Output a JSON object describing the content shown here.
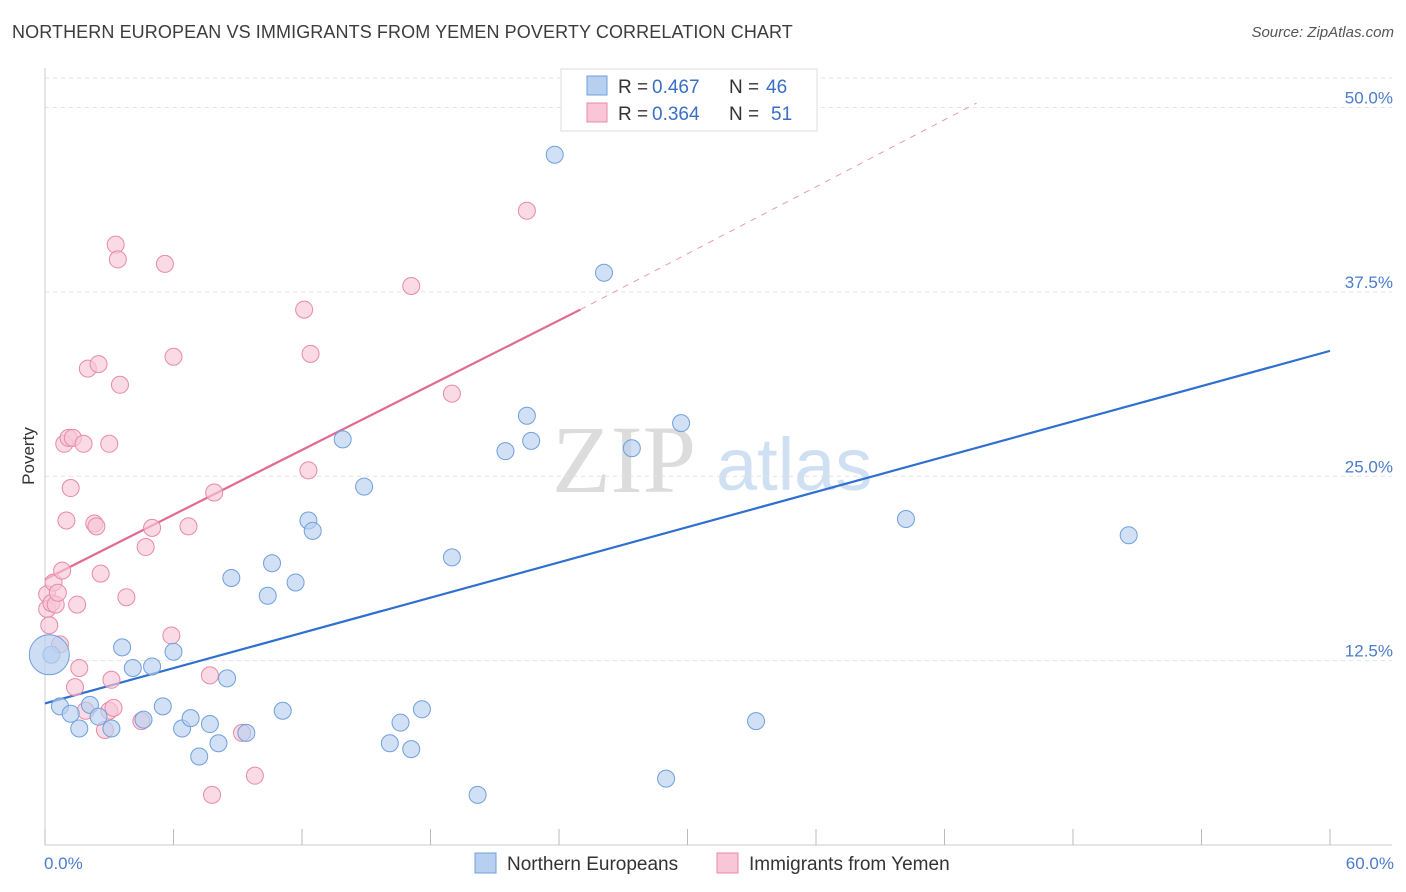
{
  "title": "NORTHERN EUROPEAN VS IMMIGRANTS FROM YEMEN POVERTY CORRELATION CHART",
  "source": "Source: ZipAtlas.com",
  "watermark": {
    "zip": "ZIP",
    "atlas": "atlas"
  },
  "chart_data": {
    "type": "scatter",
    "ylabel": "Poverty",
    "xlim": [
      0,
      60
    ],
    "ylim": [
      0,
      52
    ],
    "x_tick_labels": [
      "0.0%",
      "60.0%"
    ],
    "y_ticks": [
      {
        "value": 12.5,
        "label": "12.5%"
      },
      {
        "value": 25.0,
        "label": "25.0%"
      },
      {
        "value": 37.5,
        "label": "37.5%"
      },
      {
        "value": 50.0,
        "label": "50.0%"
      }
    ],
    "series": [
      {
        "name": "Northern Europeans",
        "color": "#6fa0dc",
        "fill": "#b8d0f0",
        "line_color": "#2f6fcf",
        "R": "0.467",
        "N": "46",
        "trend": {
          "x0": 0,
          "y0": 9.6,
          "x1": 60,
          "y1": 33.5
        },
        "points": [
          [
            0.3,
            12.9
          ],
          [
            0.7,
            9.4
          ],
          [
            1.2,
            8.9
          ],
          [
            1.6,
            7.9
          ],
          [
            2.1,
            9.5
          ],
          [
            2.5,
            8.7
          ],
          [
            3.1,
            7.9
          ],
          [
            3.6,
            13.4
          ],
          [
            4.1,
            12.0
          ],
          [
            4.6,
            8.5
          ],
          [
            5.0,
            12.1
          ],
          [
            5.5,
            9.4
          ],
          [
            6.0,
            13.1
          ],
          [
            6.4,
            7.9
          ],
          [
            6.8,
            8.6
          ],
          [
            7.2,
            6.0
          ],
          [
            7.7,
            8.2
          ],
          [
            8.1,
            6.9
          ],
          [
            8.5,
            11.3
          ],
          [
            8.7,
            18.1
          ],
          [
            9.4,
            7.6
          ],
          [
            10.4,
            16.9
          ],
          [
            10.6,
            19.1
          ],
          [
            11.1,
            9.1
          ],
          [
            11.7,
            17.8
          ],
          [
            12.3,
            22.0
          ],
          [
            12.5,
            21.3
          ],
          [
            13.9,
            27.5
          ],
          [
            14.9,
            24.3
          ],
          [
            16.1,
            6.9
          ],
          [
            16.6,
            8.3
          ],
          [
            17.1,
            6.5
          ],
          [
            17.6,
            9.2
          ],
          [
            19.0,
            19.5
          ],
          [
            20.2,
            3.4
          ],
          [
            21.5,
            26.7
          ],
          [
            22.5,
            29.1
          ],
          [
            22.7,
            27.4
          ],
          [
            23.8,
            46.8
          ],
          [
            26.1,
            38.8
          ],
          [
            27.4,
            26.9
          ],
          [
            29.0,
            4.5
          ],
          [
            29.7,
            28.6
          ],
          [
            33.2,
            8.4
          ],
          [
            40.2,
            22.1
          ],
          [
            50.6,
            21.0
          ]
        ],
        "big_point": [
          0.2,
          12.9
        ]
      },
      {
        "name": "Immigrants from Yemen",
        "color": "#e98aa8",
        "fill": "#f8c6d6",
        "line_color": "#e06a93",
        "R": "0.364",
        "N": "51",
        "trend": {
          "x0": 0,
          "y0": 18.0,
          "x1": 25,
          "y1": 36.3
        },
        "trend_ext": {
          "x0": 25,
          "y0": 36.3,
          "x1": 43.5,
          "y1": 50.3
        },
        "points": [
          [
            0.1,
            17.0
          ],
          [
            0.1,
            16.0
          ],
          [
            0.2,
            14.9
          ],
          [
            0.3,
            16.4
          ],
          [
            0.4,
            17.8
          ],
          [
            0.5,
            16.3
          ],
          [
            0.6,
            17.1
          ],
          [
            0.7,
            13.6
          ],
          [
            0.8,
            18.6
          ],
          [
            0.9,
            27.2
          ],
          [
            1.0,
            22.0
          ],
          [
            1.1,
            27.6
          ],
          [
            1.2,
            24.2
          ],
          [
            1.3,
            27.6
          ],
          [
            1.4,
            10.7
          ],
          [
            1.5,
            16.3
          ],
          [
            1.6,
            12.0
          ],
          [
            1.8,
            27.2
          ],
          [
            1.9,
            9.1
          ],
          [
            2.0,
            32.3
          ],
          [
            2.3,
            21.8
          ],
          [
            2.4,
            21.6
          ],
          [
            2.5,
            32.6
          ],
          [
            2.6,
            18.4
          ],
          [
            2.8,
            7.8
          ],
          [
            3.0,
            9.1
          ],
          [
            3.0,
            27.2
          ],
          [
            3.1,
            11.2
          ],
          [
            3.2,
            9.3
          ],
          [
            3.3,
            40.7
          ],
          [
            3.4,
            39.7
          ],
          [
            3.5,
            31.2
          ],
          [
            3.8,
            16.8
          ],
          [
            4.5,
            8.4
          ],
          [
            4.7,
            20.2
          ],
          [
            5.0,
            21.5
          ],
          [
            5.6,
            39.4
          ],
          [
            5.9,
            14.2
          ],
          [
            6.0,
            33.1
          ],
          [
            6.7,
            21.6
          ],
          [
            7.7,
            11.5
          ],
          [
            7.8,
            3.4
          ],
          [
            7.9,
            23.9
          ],
          [
            9.2,
            7.6
          ],
          [
            9.8,
            4.7
          ],
          [
            12.1,
            36.3
          ],
          [
            12.3,
            25.4
          ],
          [
            12.4,
            33.3
          ],
          [
            17.1,
            37.9
          ],
          [
            19.0,
            30.6
          ],
          [
            22.5,
            43.0
          ]
        ]
      }
    ]
  }
}
